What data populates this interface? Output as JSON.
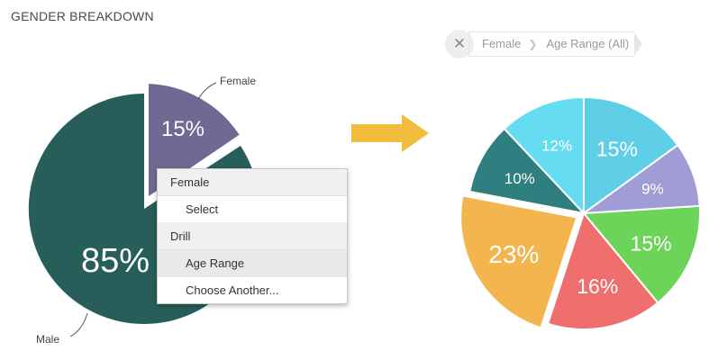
{
  "title": "GENDER BREAKDOWN",
  "left_pie": {
    "labels": {
      "female": "Female",
      "male": "Male"
    },
    "female_pct": "15%",
    "male_pct": "85%",
    "colors": {
      "female": "#6e6a94",
      "male": "#275e5a"
    }
  },
  "context_menu": {
    "header_female": "Female",
    "select_label": "Select",
    "header_drill": "Drill",
    "age_range_label": "Age Range",
    "choose_another_label": "Choose Another..."
  },
  "breadcrumb": {
    "close_icon": "close-icon",
    "items": [
      "Female",
      "Age Range (All)"
    ]
  },
  "arrow": {
    "color": "#f2bd3c",
    "icon": "arrow-right-icon"
  },
  "chart_data": {
    "type": "pie",
    "title": "",
    "slices": [
      {
        "label": "15%",
        "value": 15,
        "color": "#5ecfe6"
      },
      {
        "label": "9%",
        "value": 9,
        "color": "#9f9cd6"
      },
      {
        "label": "15%",
        "value": 15,
        "color": "#6dd45a"
      },
      {
        "label": "16%",
        "value": 16,
        "color": "#ef6e6e"
      },
      {
        "label": "23%",
        "value": 23,
        "color": "#f3b54e"
      },
      {
        "label": "10%",
        "value": 10,
        "color": "#2f7f80"
      },
      {
        "label": "12%",
        "value": 12,
        "color": "#66dcf0"
      }
    ],
    "exploded_slice": "23%"
  }
}
